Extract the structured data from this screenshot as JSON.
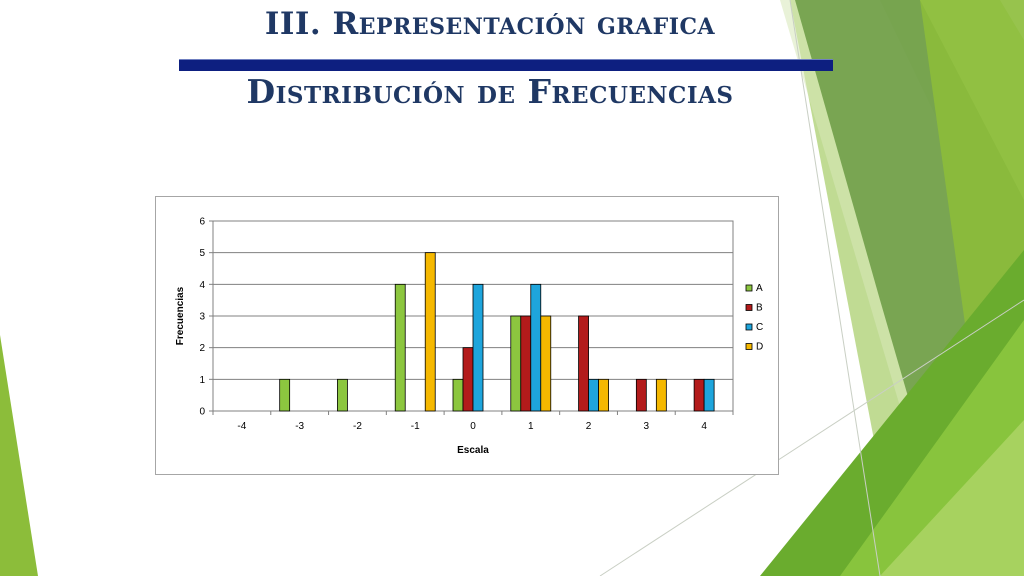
{
  "slide": {
    "title_line1": "III. Representación grafica",
    "title_line2": "Distribución de Frecuencias"
  },
  "theme": {
    "title_color": "#1f3864",
    "rule_color": "#0d1f80",
    "accent_greens": [
      "#6a9a43",
      "#8cbd3a",
      "#a9cf5e",
      "#d7e8b8"
    ]
  },
  "chart_data": {
    "type": "bar",
    "title": "",
    "xlabel": "Escala",
    "ylabel": "Frecuencias",
    "categories": [
      "-4",
      "-3",
      "-2",
      "-1",
      "0",
      "1",
      "2",
      "3",
      "4"
    ],
    "ylim": [
      0,
      6
    ],
    "yticks": [
      0,
      1,
      2,
      3,
      4,
      5,
      6
    ],
    "grid": true,
    "legend_position": "right",
    "series": [
      {
        "name": "A",
        "color": "#8cc63f",
        "values": [
          0,
          1,
          1,
          4,
          1,
          3,
          0,
          0,
          0
        ]
      },
      {
        "name": "B",
        "color": "#b31b1b",
        "values": [
          0,
          0,
          0,
          0,
          2,
          3,
          3,
          1,
          1
        ]
      },
      {
        "name": "C",
        "color": "#1ea5dc",
        "values": [
          0,
          0,
          0,
          0,
          4,
          4,
          1,
          0,
          1
        ]
      },
      {
        "name": "D",
        "color": "#f5b800",
        "values": [
          0,
          0,
          0,
          5,
          0,
          3,
          1,
          1,
          0
        ]
      }
    ]
  }
}
